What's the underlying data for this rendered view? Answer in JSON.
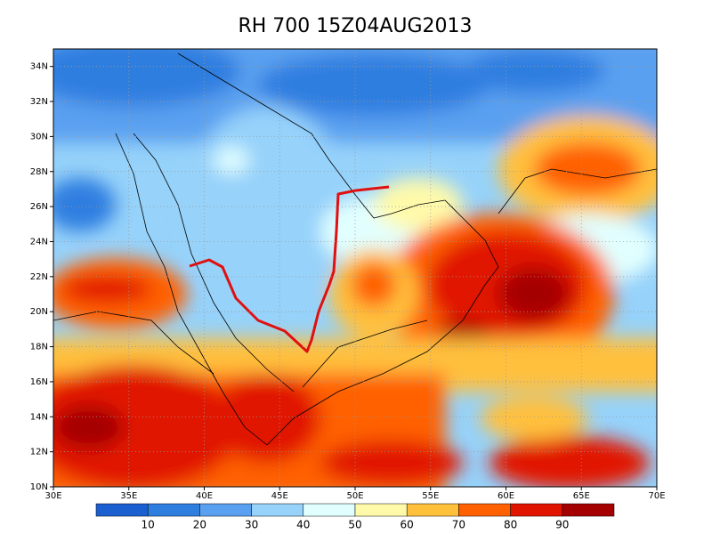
{
  "title": "RH 700 15Z04AUG2013",
  "map": {
    "xlim": [
      30,
      70
    ],
    "ylim": [
      10,
      35
    ],
    "xticks": [
      {
        "value": 30,
        "label": "30E"
      },
      {
        "value": 35,
        "label": "35E"
      },
      {
        "value": 40,
        "label": "40E"
      },
      {
        "value": 45,
        "label": "45E"
      },
      {
        "value": 50,
        "label": "50E"
      },
      {
        "value": 55,
        "label": "55E"
      },
      {
        "value": 60,
        "label": "60E"
      },
      {
        "value": 65,
        "label": "65E"
      },
      {
        "value": 70,
        "label": "70E"
      }
    ],
    "yticks": [
      {
        "value": 10,
        "label": "10N"
      },
      {
        "value": 12,
        "label": "12N"
      },
      {
        "value": 14,
        "label": "14N"
      },
      {
        "value": 16,
        "label": "16N"
      },
      {
        "value": 18,
        "label": "18N"
      },
      {
        "value": 20,
        "label": "20N"
      },
      {
        "value": 22,
        "label": "22N"
      },
      {
        "value": 24,
        "label": "24N"
      },
      {
        "value": 26,
        "label": "26N"
      },
      {
        "value": 28,
        "label": "28N"
      },
      {
        "value": 30,
        "label": "30N"
      },
      {
        "value": 32,
        "label": "32N"
      },
      {
        "value": 34,
        "label": "34N"
      }
    ],
    "grid": true
  },
  "colorbar": {
    "colors": [
      "#1a5fd0",
      "#2e7ee0",
      "#5aa0f0",
      "#96d2fa",
      "#e1ffff",
      "#fffaaa",
      "#ffc03c",
      "#ff6000",
      "#e11400",
      "#a50000"
    ],
    "labels": [
      10,
      20,
      30,
      40,
      50,
      60,
      70,
      80,
      90
    ]
  }
}
